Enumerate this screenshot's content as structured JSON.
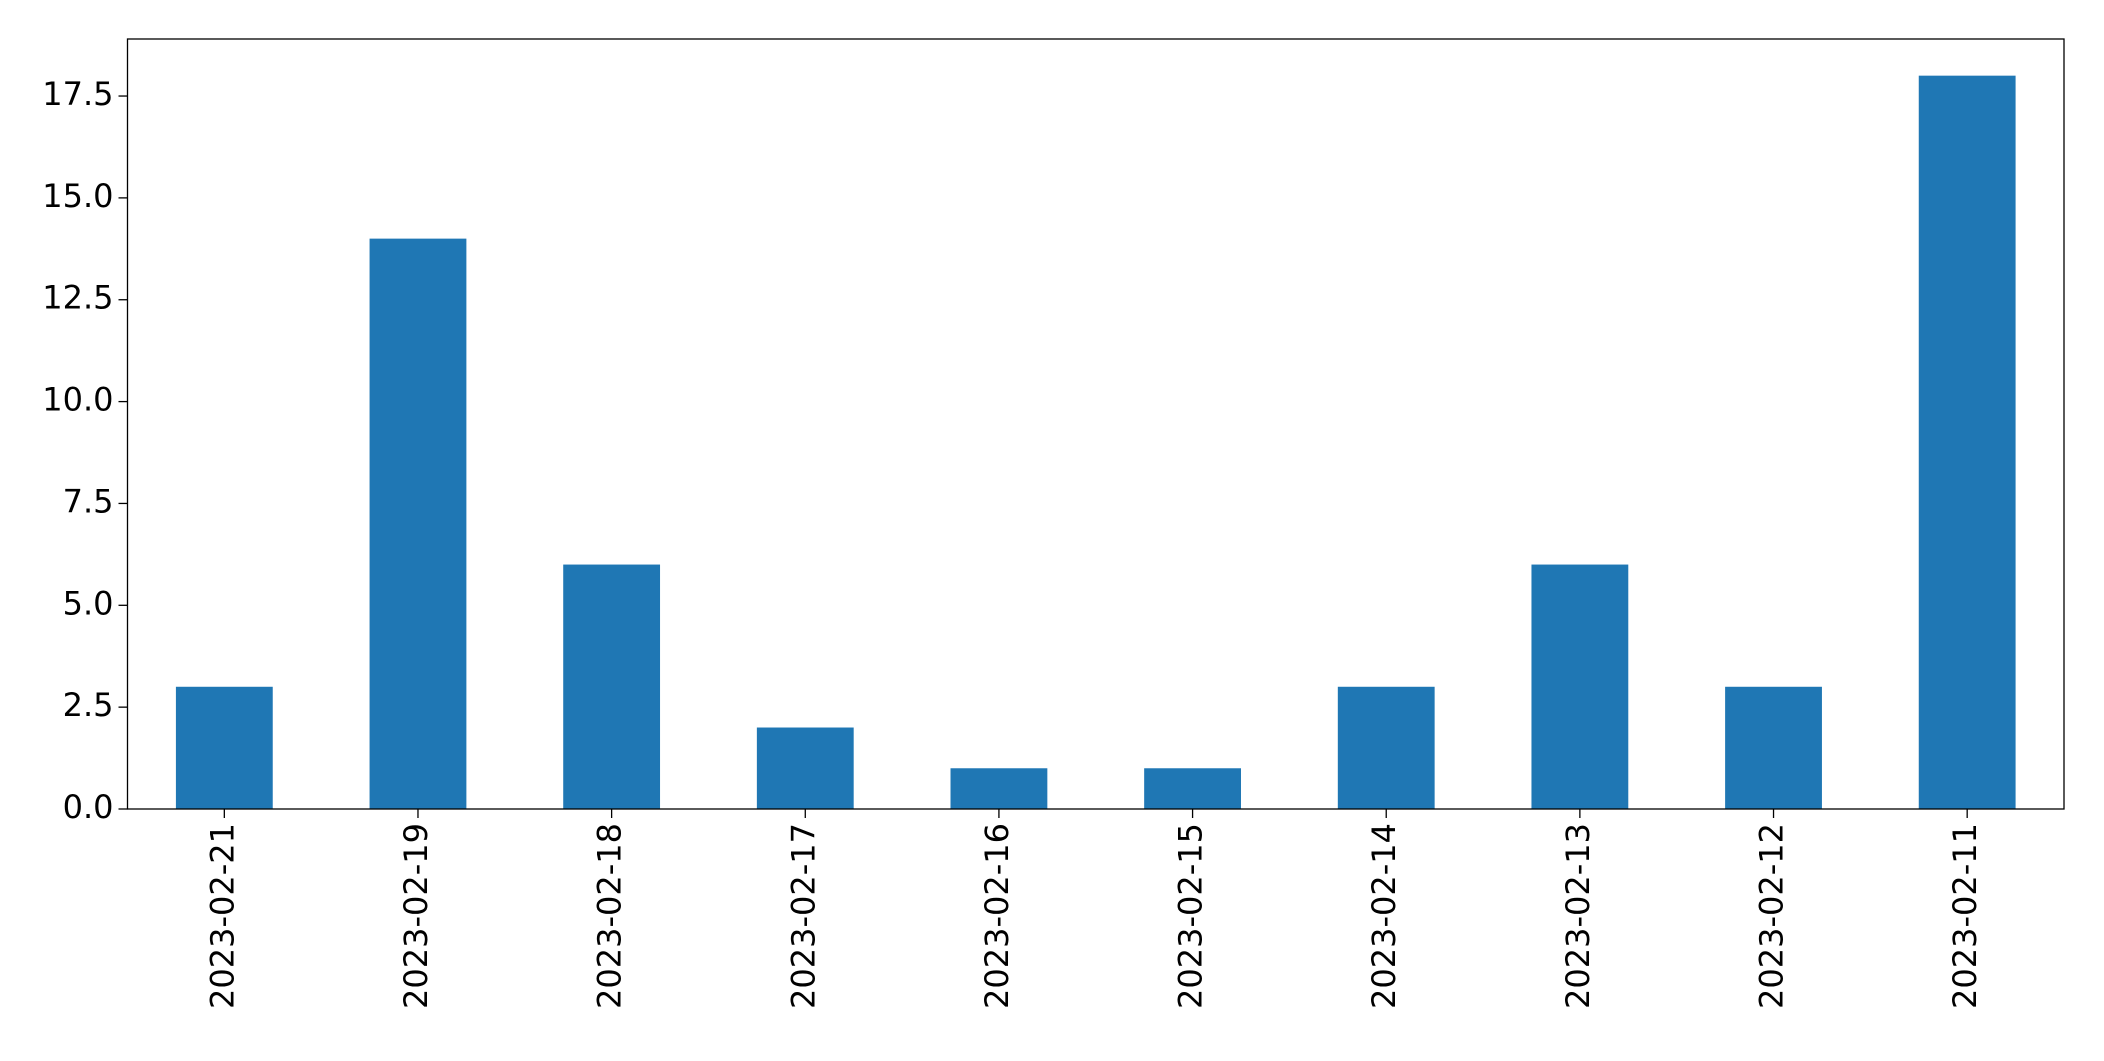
{
  "chart_data": {
    "type": "bar",
    "categories": [
      "2023-02-21",
      "2023-02-19",
      "2023-02-18",
      "2023-02-17",
      "2023-02-16",
      "2023-02-15",
      "2023-02-14",
      "2023-02-13",
      "2023-02-12",
      "2023-02-11"
    ],
    "values": [
      3,
      14,
      6,
      2,
      1,
      1,
      3,
      6,
      3,
      18
    ],
    "color": "#1f77b4",
    "ylim": [
      0,
      18.9
    ],
    "yticks": [
      {
        "value": 0,
        "label": "0.0"
      },
      {
        "value": 2.5,
        "label": "2.5"
      },
      {
        "value": 5,
        "label": "5.0"
      },
      {
        "value": 7.5,
        "label": "7.5"
      },
      {
        "value": 10,
        "label": "10.0"
      },
      {
        "value": 12.5,
        "label": "12.5"
      },
      {
        "value": 15,
        "label": "15.0"
      },
      {
        "value": 17.5,
        "label": "17.5"
      }
    ],
    "grid": false
  }
}
